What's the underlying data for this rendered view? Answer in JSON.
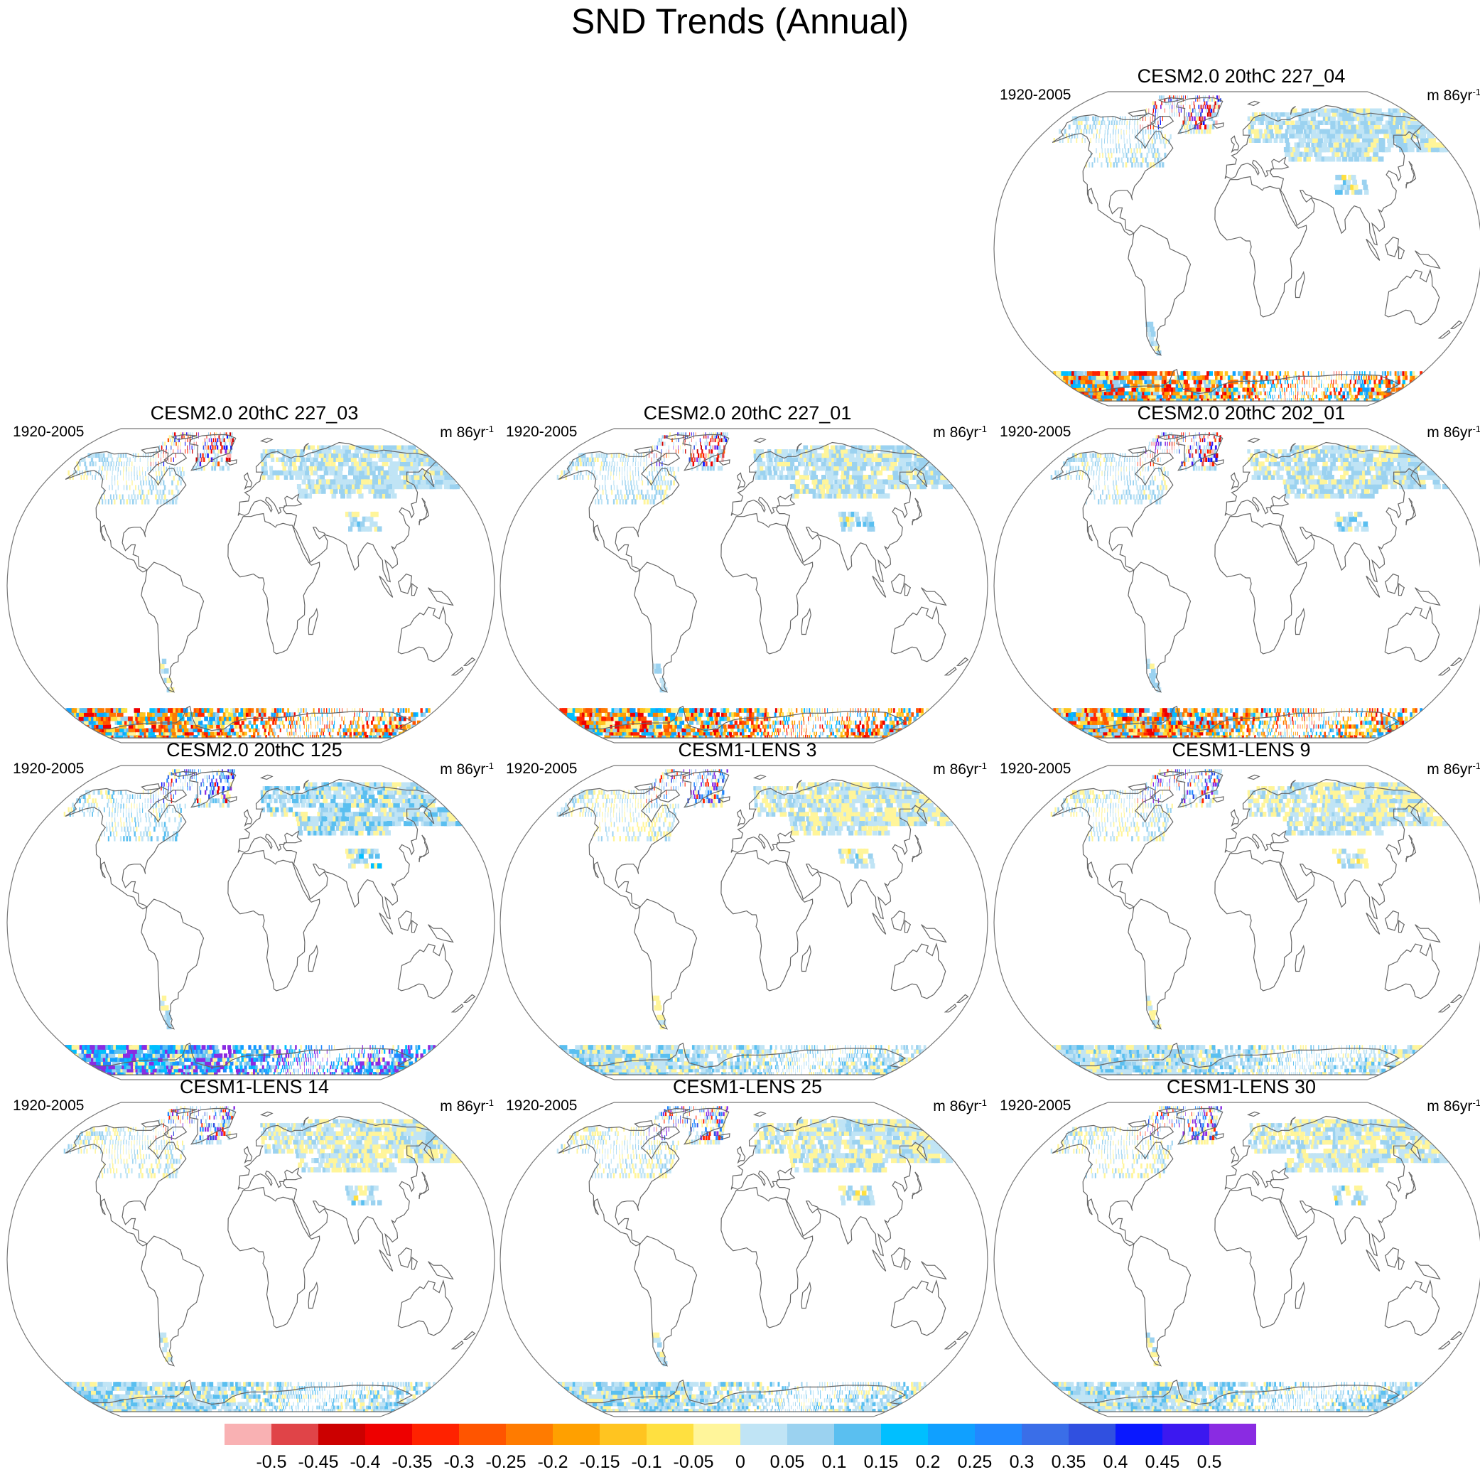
{
  "title": "SND Trends (Annual)",
  "chart_data": {
    "type": "heatmap",
    "title": "SND Trends (Annual)",
    "projection": "robinson world map",
    "panels": [
      {
        "title": "CESM2.0 20thC 227_04",
        "period": "1920-2005",
        "units_base": "m 86yr",
        "units_exp": "-1",
        "palette": "cesm2"
      },
      {
        "title": "CESM2.0 20thC 227_03",
        "period": "1920-2005",
        "units_base": "m 86yr",
        "units_exp": "-1",
        "palette": "cesm2"
      },
      {
        "title": "CESM2.0 20thC 227_01",
        "period": "1920-2005",
        "units_base": "m 86yr",
        "units_exp": "-1",
        "palette": "cesm2"
      },
      {
        "title": "CESM2.0 20thC 202_01",
        "period": "1920-2005",
        "units_base": "m 86yr",
        "units_exp": "-1",
        "palette": "cesm2"
      },
      {
        "title": "CESM2.0 20thC 125",
        "period": "1920-2005",
        "units_base": "m 86yr",
        "units_exp": "-1",
        "palette": "cesm2b"
      },
      {
        "title": "CESM1-LENS 3",
        "period": "1920-2005",
        "units_base": "m 86yr",
        "units_exp": "-1",
        "palette": "lens"
      },
      {
        "title": "CESM1-LENS 9",
        "period": "1920-2005",
        "units_base": "m 86yr",
        "units_exp": "-1",
        "palette": "lens"
      },
      {
        "title": "CESM1-LENS 14",
        "period": "1920-2005",
        "units_base": "m 86yr",
        "units_exp": "-1",
        "palette": "lens"
      },
      {
        "title": "CESM1-LENS 25",
        "period": "1920-2005",
        "units_base": "m 86yr",
        "units_exp": "-1",
        "palette": "lens"
      },
      {
        "title": "CESM1-LENS 30",
        "period": "1920-2005",
        "units_base": "m 86yr",
        "units_exp": "-1",
        "palette": "lens"
      }
    ],
    "colorbar": {
      "levels": [
        "-0.5",
        "-0.45",
        "-0.4",
        "-0.35",
        "-0.3",
        "-0.25",
        "-0.2",
        "-0.15",
        "-0.1",
        "-0.05",
        "0",
        "0.05",
        "0.1",
        "0.15",
        "0.2",
        "0.25",
        "0.3",
        "0.35",
        "0.4",
        "0.45",
        "0.5"
      ],
      "colors": [
        "#f9b1b3",
        "#e04448",
        "#cc0000",
        "#ee0000",
        "#ff2200",
        "#ff5500",
        "#ff7b00",
        "#ffa000",
        "#ffc420",
        "#ffe040",
        "#fff59a",
        "#c0e4f5",
        "#9bd2f0",
        "#5abff0",
        "#00bfff",
        "#10a0ff",
        "#2288ff",
        "#3a6ee8",
        "#3050e0",
        "#0a18ff",
        "#3c18f0",
        "#8a2be2"
      ]
    }
  }
}
